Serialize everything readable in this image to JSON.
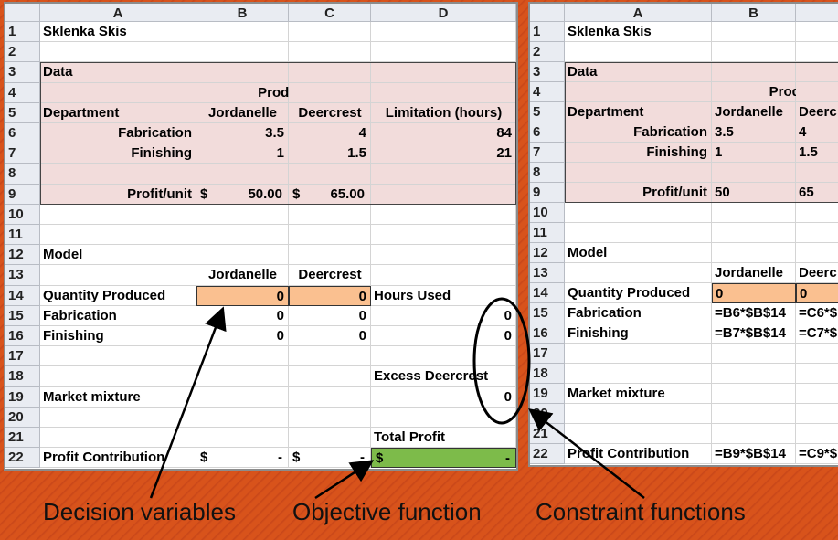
{
  "sheets": [
    {
      "columns": [
        "A",
        "B",
        "C",
        "D"
      ],
      "rows": [
        {
          "number": 1,
          "cells": [
            "Sklenka Skis",
            null,
            null,
            null
          ]
        },
        {
          "number": 2,
          "cells": [
            null,
            null,
            null,
            null
          ]
        },
        {
          "number": 3,
          "cells": [
            "Data",
            null,
            null,
            null
          ]
        },
        {
          "number": 4,
          "cells": [
            null,
            "Product",
            null,
            null
          ]
        },
        {
          "number": 5,
          "cells": [
            "Department",
            "Jordanelle",
            "Deercrest",
            "Limitation (hours)"
          ]
        },
        {
          "number": 6,
          "cells": [
            "Fabrication",
            3.5,
            4,
            84
          ]
        },
        {
          "number": 7,
          "cells": [
            "Finishing",
            1,
            1.5,
            21
          ]
        },
        {
          "number": 8,
          "cells": [
            null,
            null,
            null,
            null
          ]
        },
        {
          "number": 9,
          "cells": [
            "Profit/unit",
            [
              "$",
              "50.00"
            ],
            [
              "$",
              "65.00"
            ],
            null
          ]
        },
        {
          "number": 10,
          "cells": [
            null,
            null,
            null,
            null
          ]
        },
        {
          "number": 11,
          "cells": [
            null,
            null,
            null,
            null
          ]
        },
        {
          "number": 12,
          "cells": [
            "Model",
            null,
            null,
            null
          ]
        },
        {
          "number": 13,
          "cells": [
            null,
            "Jordanelle",
            "Deercrest",
            null
          ]
        },
        {
          "number": 14,
          "cells": [
            "Quantity Produced",
            0,
            0,
            "Hours Used"
          ]
        },
        {
          "number": 15,
          "cells": [
            "Fabrication",
            0,
            0,
            0
          ]
        },
        {
          "number": 16,
          "cells": [
            "Finishing",
            0,
            0,
            0
          ]
        },
        {
          "number": 17,
          "cells": [
            null,
            null,
            null,
            null
          ]
        },
        {
          "number": 18,
          "cells": [
            null,
            null,
            null,
            "Excess Deercrest"
          ]
        },
        {
          "number": 19,
          "cells": [
            "Market mixture",
            null,
            null,
            0
          ]
        },
        {
          "number": 20,
          "cells": [
            null,
            null,
            null,
            null
          ]
        },
        {
          "number": 21,
          "cells": [
            null,
            null,
            null,
            "Total Profit"
          ]
        },
        {
          "number": 22,
          "cells": [
            "Profit Contribution",
            [
              "$",
              "-"
            ],
            [
              "$",
              "-"
            ],
            [
              "$",
              "-"
            ]
          ]
        }
      ]
    },
    {
      "columns": [
        "A",
        "B"
      ],
      "rows": [
        {
          "number": 1,
          "cells": [
            "Sklenka Skis",
            null,
            null
          ]
        },
        {
          "number": 2,
          "cells": [
            null,
            null,
            null
          ]
        },
        {
          "number": 3,
          "cells": [
            "Data",
            null,
            null
          ]
        },
        {
          "number": 4,
          "cells": [
            null,
            "Product",
            null
          ]
        },
        {
          "number": 5,
          "cells": [
            "Department",
            "Jordanelle",
            "Deerc"
          ]
        },
        {
          "number": 6,
          "cells": [
            "Fabrication",
            3.5,
            4
          ]
        },
        {
          "number": 7,
          "cells": [
            "Finishing",
            1,
            1.5
          ]
        },
        {
          "number": 8,
          "cells": [
            null,
            null,
            null
          ]
        },
        {
          "number": 9,
          "cells": [
            "Profit/unit",
            50,
            65
          ]
        },
        {
          "number": 10,
          "cells": [
            null,
            null,
            null
          ]
        },
        {
          "number": 11,
          "cells": [
            null,
            null,
            null
          ]
        },
        {
          "number": 12,
          "cells": [
            "Model",
            null,
            null
          ]
        },
        {
          "number": 13,
          "cells": [
            null,
            "Jordanelle",
            "Deerc"
          ]
        },
        {
          "number": 14,
          "cells": [
            "Quantity Produced",
            0,
            0
          ]
        },
        {
          "number": 15,
          "cells": [
            "Fabrication",
            "=B6*$B$14",
            "=C6*$"
          ]
        },
        {
          "number": 16,
          "cells": [
            "Finishing",
            "=B7*$B$14",
            "=C7*$"
          ]
        },
        {
          "number": 17,
          "cells": [
            null,
            null,
            null
          ]
        },
        {
          "number": 18,
          "cells": [
            null,
            null,
            null
          ]
        },
        {
          "number": 19,
          "cells": [
            "Market mixture",
            null,
            null
          ]
        },
        {
          "number": 20,
          "cells": [
            null,
            null,
            null
          ]
        },
        {
          "number": 21,
          "cells": [
            null,
            null,
            null
          ]
        },
        {
          "number": 22,
          "cells": [
            "Profit Contribution",
            "=B9*$B$14",
            "=C9*$"
          ]
        }
      ]
    }
  ],
  "annotations": [
    "Decision variables",
    "Objective function",
    "Constraint functions"
  ]
}
